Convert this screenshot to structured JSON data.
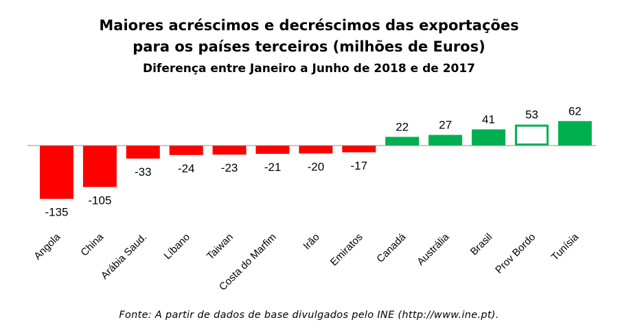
{
  "chart_data": {
    "type": "bar",
    "title": "Maiores acréscimos e decréscimos das exportações para os países terceiros (milhões de Euros)",
    "title_lines": [
      "Maiores acréscimos e decréscimos das exportações",
      "para os países terceiros (milhões de Euros)"
    ],
    "subtitle": "Diferença entre Janeiro a Junho de 2018 e de 2017",
    "categories": [
      "Angola",
      "China",
      "Arábia Saud.",
      "Líbano",
      "Taiwan",
      "Costa do Marfim",
      "Irão",
      "Emiratos",
      "Canadá",
      "Austrália",
      "Brasil",
      "Prov Bordo",
      "Tunísia"
    ],
    "values": [
      -135,
      -105,
      -33,
      -24,
      -23,
      -21,
      -20,
      -17,
      22,
      27,
      41,
      53,
      62
    ],
    "bar_styles": [
      "filled",
      "filled",
      "filled",
      "filled",
      "filled",
      "filled",
      "filled",
      "filled",
      "filled",
      "filled",
      "filled",
      "outline",
      "filled"
    ],
    "xlabel": "",
    "ylabel": "",
    "ylim": [
      -135,
      62
    ],
    "grid": false,
    "colors": {
      "negative": "#ff0000",
      "positive": "#00b050",
      "outline_fill": "#ffffff",
      "axis": "#8c8c8c"
    },
    "source": "Fonte: A partir de dados de base divulgados pelo INE (http://www.ine.pt)."
  }
}
